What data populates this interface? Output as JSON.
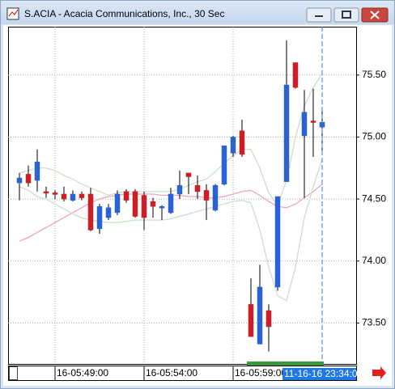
{
  "chart_data": {
    "type": "candlestick",
    "title": "S.ACIA - Acacia Communications, Inc., 30 Sec",
    "categories": [
      null,
      null,
      null,
      null,
      "16-05:49:00",
      null,
      null,
      null,
      null,
      null,
      null,
      null,
      null,
      null,
      "16-05:54:00",
      null,
      null,
      null,
      null,
      null,
      null,
      null,
      null,
      null,
      "16-05:59:00",
      null,
      null,
      null,
      null,
      null,
      null,
      null,
      null,
      null,
      null
    ],
    "open": [
      74.63,
      74.7,
      74.65,
      74.56,
      74.55,
      74.54,
      74.49,
      74.54,
      74.54,
      74.26,
      74.35,
      74.39,
      74.56,
      74.56,
      74.53,
      74.48,
      74.43,
      74.39,
      74.54,
      74.71,
      74.61,
      74.57,
      74.41,
      74.62,
      74.87,
      75.05,
      73.65,
      73.33,
      73.6,
      73.79,
      74.64,
      75.6,
      75.01,
      75.13,
      75.08
    ],
    "high": [
      74.71,
      74.77,
      74.9,
      74.6,
      74.57,
      74.6,
      74.57,
      74.56,
      74.59,
      74.46,
      74.46,
      74.57,
      74.58,
      74.58,
      74.56,
      74.51,
      74.45,
      74.59,
      74.73,
      74.71,
      74.69,
      74.62,
      74.62,
      74.93,
      75.01,
      75.14,
      73.86,
      73.97,
      73.65,
      74.52,
      75.78,
      75.6,
      75.38,
      75.39,
      75.23
    ],
    "low": [
      74.49,
      74.6,
      74.56,
      74.51,
      74.5,
      74.48,
      74.48,
      74.49,
      74.24,
      74.22,
      74.33,
      74.37,
      74.47,
      74.35,
      74.25,
      74.35,
      74.33,
      74.38,
      74.5,
      74.54,
      74.5,
      74.33,
      74.4,
      74.61,
      74.84,
      74.84,
      73.39,
      73.33,
      73.27,
      73.76,
      74.64,
      75.39,
      74.51,
      74.84,
      74.88
    ],
    "close": [
      74.67,
      74.63,
      74.8,
      74.55,
      74.54,
      74.5,
      74.54,
      74.51,
      74.25,
      74.44,
      74.43,
      74.54,
      74.49,
      74.36,
      74.35,
      74.44,
      74.44,
      74.54,
      74.61,
      74.68,
      74.56,
      74.49,
      74.61,
      74.93,
      75.0,
      74.86,
      73.39,
      73.79,
      73.47,
      74.52,
      75.42,
      75.4,
      75.2,
      75.12,
      75.12
    ],
    "up_color": "#2a62d4",
    "down_color": "#cc1f24",
    "overlays": [
      {
        "color": "#f2a2c4",
        "values": [
          74.16,
          74.19,
          74.23,
          74.27,
          74.31,
          74.35,
          74.39,
          74.43,
          74.47,
          74.5,
          74.52,
          74.53,
          74.54,
          74.54,
          74.54,
          74.54,
          74.53,
          74.53,
          74.53,
          74.52,
          74.52,
          74.51,
          74.51,
          74.52,
          74.54,
          74.56,
          74.57,
          74.53,
          74.48,
          74.44,
          74.43,
          74.46,
          74.51,
          74.56,
          74.62
        ]
      },
      {
        "color": "#c9e0c9",
        "values": [
          74.71,
          74.73,
          74.75,
          74.75,
          74.73,
          74.69,
          74.66,
          74.62,
          74.59,
          74.56,
          74.53,
          74.55,
          74.56,
          74.56,
          74.56,
          74.56,
          74.56,
          74.56,
          74.58,
          74.61,
          74.64,
          74.66,
          74.72,
          74.79,
          74.85,
          74.9,
          74.9,
          74.75,
          74.55,
          74.45,
          74.65,
          75.0,
          75.25,
          75.4,
          75.51
        ]
      },
      {
        "color": "#c9e0c9",
        "values": [
          74.6,
          74.57,
          74.52,
          74.5,
          74.46,
          74.42,
          74.38,
          74.35,
          74.33,
          74.32,
          74.31,
          74.31,
          74.32,
          74.33,
          74.33,
          74.33,
          74.33,
          74.34,
          74.36,
          74.38,
          74.4,
          74.42,
          74.44,
          74.46,
          74.48,
          74.49,
          74.47,
          74.25,
          73.95,
          73.72,
          73.68,
          73.95,
          74.35,
          74.6,
          74.82
        ]
      }
    ],
    "ylim": [
      73.17,
      75.89
    ],
    "yticks": [
      {
        "value": 73.5,
        "label": "73.50"
      },
      {
        "value": 74,
        "label": "74.00"
      },
      {
        "value": 74.5,
        "label": "74.50"
      },
      {
        "value": 75,
        "label": "75.00"
      },
      {
        "value": 75.5,
        "label": "75.50"
      }
    ],
    "grid": true,
    "cursor_label": "11-16-16 23:34:00"
  }
}
